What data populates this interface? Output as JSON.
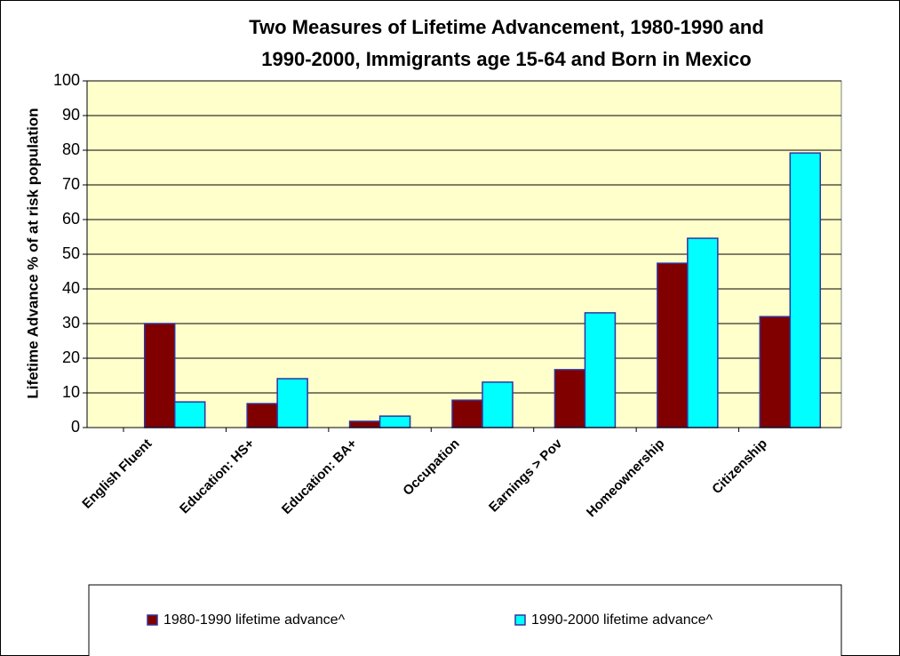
{
  "chart_data": {
    "type": "bar",
    "title": [
      "Two Measures of Lifetime Advancement, 1980-1990 and",
      "1990-2000, Immigrants age 15-64 and Born in Mexico"
    ],
    "y_label": "Lifetime Advance % of at risk population",
    "categories": [
      "English Fluent",
      "Education: HS+",
      "Education: BA+",
      "Occupation",
      "Earnings > Pov",
      "Homeownership",
      "Citizenship"
    ],
    "series": [
      {
        "name": "1980-1990 lifetime advance^",
        "color": "#800000",
        "values": [
          30,
          6.9,
          1.8,
          7.9,
          16.7,
          47.4,
          32
        ]
      },
      {
        "name": "1990-2000 lifetime advance^",
        "color": "#00ffff",
        "values": [
          7.4,
          14.1,
          3.3,
          13.1,
          33.1,
          54.6,
          79.2
        ]
      }
    ],
    "ylim": [
      0,
      100
    ],
    "yticks": [
      0,
      10,
      20,
      30,
      40,
      50,
      60,
      70,
      80,
      90,
      100
    ],
    "grid": true,
    "legend": "bottom"
  }
}
